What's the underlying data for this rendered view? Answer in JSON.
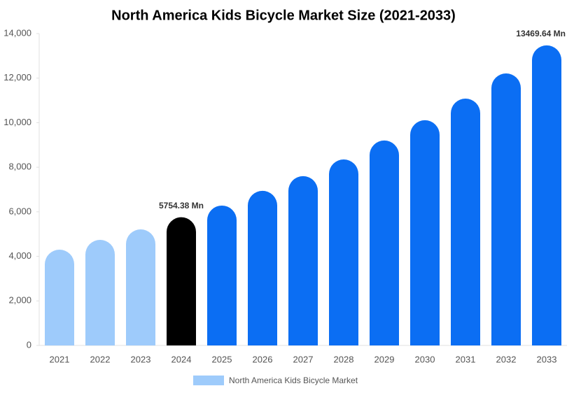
{
  "chart_data": {
    "type": "bar",
    "title": "North America Kids Bicycle Market Size (2021-2033)",
    "categories": [
      "2021",
      "2022",
      "2023",
      "2024",
      "2025",
      "2026",
      "2027",
      "2028",
      "2029",
      "2030",
      "2031",
      "2032",
      "2033"
    ],
    "series": [
      {
        "name": "North America Kids Bicycle Market",
        "color": "#9ecbfb",
        "colors": [
          "#9ecbfb",
          "#9ecbfb",
          "#9ecbfb",
          "#000000",
          "#0b6ef3",
          "#0b6ef3",
          "#0b6ef3",
          "#0b6ef3",
          "#0b6ef3",
          "#0b6ef3",
          "#0b6ef3",
          "#0b6ef3",
          "#0b6ef3"
        ],
        "values": [
          4300,
          4740,
          5210,
          5754.38,
          6280,
          6940,
          7600,
          8350,
          9200,
          10110,
          11080,
          12210,
          13469.64
        ],
        "value_labels": [
          null,
          null,
          null,
          "5754.38 Mn",
          null,
          null,
          null,
          null,
          null,
          null,
          null,
          null,
          "13469.64 Mn"
        ]
      }
    ],
    "ylim": [
      0,
      14000
    ],
    "yticks": [
      0,
      {
        "value": 2000,
        "label": "2,000"
      },
      {
        "value": 4000,
        "label": "4,000"
      },
      {
        "value": 6000,
        "label": "6,000"
      },
      {
        "value": 8000,
        "label": "8,000"
      },
      {
        "value": 10000,
        "label": "10,000"
      },
      {
        "value": 12000,
        "label": "12,000"
      },
      {
        "value": 14000,
        "label": "14,000"
      }
    ],
    "grid": false,
    "legend": "bottom"
  }
}
